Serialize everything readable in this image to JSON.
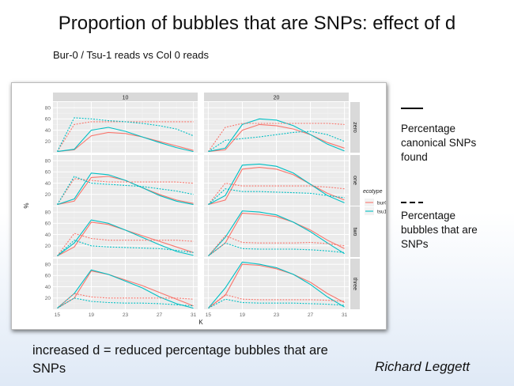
{
  "slide": {
    "title": "Proportion of bubbles that are SNPs: effect of d",
    "subtitle": "Bur-0 / Tsu-1 reads vs Col 0 reads",
    "legend_solid_label": "Percentage canonical SNPs found",
    "legend_dashed_label": "Percentage bubbles that are SNPs",
    "conclusion": "increased d = reduced percentage bubbles that are SNPs",
    "author": "Richard Leggett"
  },
  "chart_data": {
    "type": "line",
    "xlabel": "K",
    "ylabel": "%",
    "x": [
      15,
      17,
      19,
      21,
      23,
      25,
      27,
      29,
      31
    ],
    "x_ticks": [
      "15",
      "19",
      "23",
      "27",
      "31"
    ],
    "y_ticks": [
      "20",
      "40",
      "60",
      "80"
    ],
    "ylim": [
      0,
      90
    ],
    "xlim": [
      14.5,
      31.5
    ],
    "grid": true,
    "facet_columns": [
      "10",
      "20"
    ],
    "facet_rows": [
      "zero",
      "one",
      "two",
      "three"
    ],
    "legend": {
      "title": "ecotype",
      "position": "right",
      "entries": [
        {
          "name": "bur0",
          "color": "#f8766d"
        },
        {
          "name": "tsu1",
          "color": "#00bfc4"
        }
      ]
    },
    "panels": [
      {
        "col": "10",
        "row": "zero",
        "series": [
          {
            "name": "bur0",
            "metric": "canonical",
            "values": [
              2,
              5,
              30,
              36,
              34,
              28,
              20,
              12,
              4
            ]
          },
          {
            "name": "tsu1",
            "metric": "canonical",
            "values": [
              2,
              6,
              40,
              45,
              38,
              28,
              18,
              9,
              2
            ]
          },
          {
            "name": "bur0",
            "metric": "bubbles",
            "values": [
              2,
              50,
              55,
              55,
              55,
              55,
              55,
              55,
              55
            ]
          },
          {
            "name": "tsu1",
            "metric": "bubbles",
            "values": [
              2,
              62,
              60,
              57,
              55,
              52,
              48,
              42,
              30
            ]
          }
        ]
      },
      {
        "col": "20",
        "row": "zero",
        "series": [
          {
            "name": "bur0",
            "metric": "canonical",
            "values": [
              2,
              5,
              40,
              50,
              48,
              42,
              32,
              18,
              8
            ]
          },
          {
            "name": "tsu1",
            "metric": "canonical",
            "values": [
              2,
              8,
              50,
              60,
              58,
              48,
              32,
              15,
              3
            ]
          },
          {
            "name": "bur0",
            "metric": "bubbles",
            "values": [
              2,
              45,
              52,
              52,
              52,
              52,
              52,
              52,
              50
            ]
          },
          {
            "name": "tsu1",
            "metric": "bubbles",
            "values": [
              2,
              22,
              25,
              28,
              32,
              36,
              38,
              32,
              20
            ]
          }
        ]
      },
      {
        "col": "10",
        "row": "one",
        "series": [
          {
            "name": "bur0",
            "metric": "canonical",
            "values": [
              2,
              8,
              50,
              52,
              45,
              32,
              20,
              10,
              4
            ]
          },
          {
            "name": "tsu1",
            "metric": "canonical",
            "values": [
              2,
              12,
              58,
              55,
              45,
              32,
              18,
              8,
              2
            ]
          },
          {
            "name": "bur0",
            "metric": "bubbles",
            "values": [
              2,
              48,
              45,
              42,
              42,
              42,
              42,
              42,
              40
            ]
          },
          {
            "name": "tsu1",
            "metric": "bubbles",
            "values": [
              2,
              52,
              40,
              38,
              36,
              34,
              30,
              26,
              20
            ]
          }
        ]
      },
      {
        "col": "20",
        "row": "one",
        "series": [
          {
            "name": "bur0",
            "metric": "canonical",
            "values": [
              2,
              10,
              65,
              68,
              65,
              55,
              38,
              22,
              10
            ]
          },
          {
            "name": "tsu1",
            "metric": "canonical",
            "values": [
              2,
              18,
              72,
              74,
              70,
              58,
              38,
              18,
              5
            ]
          },
          {
            "name": "bur0",
            "metric": "bubbles",
            "values": [
              2,
              40,
              35,
              35,
              35,
              35,
              35,
              33,
              30
            ]
          },
          {
            "name": "tsu1",
            "metric": "bubbles",
            "values": [
              2,
              30,
              25,
              25,
              24,
              23,
              22,
              18,
              14
            ]
          }
        ]
      },
      {
        "col": "10",
        "row": "two",
        "series": [
          {
            "name": "bur0",
            "metric": "canonical",
            "values": [
              2,
              18,
              62,
              58,
              48,
              38,
              28,
              18,
              8
            ]
          },
          {
            "name": "tsu1",
            "metric": "canonical",
            "values": [
              2,
              25,
              66,
              60,
              48,
              35,
              22,
              10,
              3
            ]
          },
          {
            "name": "bur0",
            "metric": "bubbles",
            "values": [
              2,
              42,
              33,
              30,
              30,
              30,
              30,
              30,
              28
            ]
          },
          {
            "name": "tsu1",
            "metric": "bubbles",
            "values": [
              2,
              30,
              20,
              18,
              17,
              16,
              15,
              12,
              8
            ]
          }
        ]
      },
      {
        "col": "20",
        "row": "two",
        "series": [
          {
            "name": "bur0",
            "metric": "canonical",
            "values": [
              2,
              25,
              78,
              76,
              72,
              62,
              48,
              30,
              15
            ]
          },
          {
            "name": "tsu1",
            "metric": "canonical",
            "values": [
              2,
              35,
              82,
              80,
              75,
              62,
              45,
              25,
              6
            ]
          },
          {
            "name": "bur0",
            "metric": "bubbles",
            "values": [
              2,
              38,
              26,
              25,
              25,
              25,
              26,
              24,
              20
            ]
          },
          {
            "name": "tsu1",
            "metric": "bubbles",
            "values": [
              2,
              25,
              15,
              14,
              14,
              14,
              13,
              11,
              8
            ]
          }
        ]
      },
      {
        "col": "10",
        "row": "three",
        "series": [
          {
            "name": "bur0",
            "metric": "canonical",
            "values": [
              2,
              20,
              68,
              62,
              52,
              42,
              30,
              18,
              6
            ]
          },
          {
            "name": "tsu1",
            "metric": "canonical",
            "values": [
              2,
              28,
              70,
              62,
              50,
              38,
              22,
              10,
              2
            ]
          },
          {
            "name": "bur0",
            "metric": "bubbles",
            "values": [
              2,
              28,
              22,
              20,
              20,
              20,
              20,
              20,
              18
            ]
          },
          {
            "name": "tsu1",
            "metric": "bubbles",
            "values": [
              2,
              20,
              14,
              12,
              11,
              11,
              10,
              8,
              6
            ]
          }
        ]
      },
      {
        "col": "20",
        "row": "three",
        "series": [
          {
            "name": "bur0",
            "metric": "canonical",
            "values": [
              2,
              25,
              80,
              78,
              72,
              62,
              48,
              28,
              12
            ]
          },
          {
            "name": "tsu1",
            "metric": "canonical",
            "values": [
              2,
              38,
              84,
              80,
              74,
              62,
              44,
              22,
              4
            ]
          },
          {
            "name": "bur0",
            "metric": "bubbles",
            "values": [
              2,
              26,
              18,
              17,
              17,
              17,
              17,
              16,
              14
            ]
          },
          {
            "name": "tsu1",
            "metric": "bubbles",
            "values": [
              2,
              18,
              12,
              11,
              11,
              11,
              10,
              9,
              7
            ]
          }
        ]
      }
    ]
  }
}
